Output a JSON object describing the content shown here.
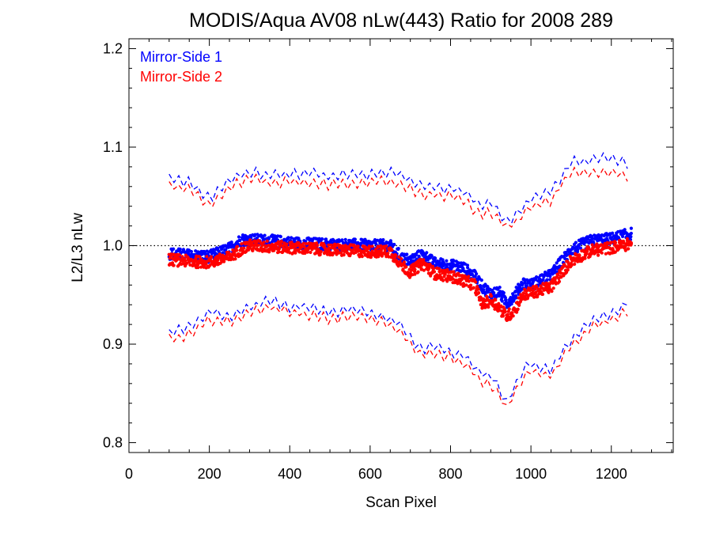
{
  "chart_data": {
    "type": "scatter",
    "title": "MODIS/Aqua AV08 nLw(443) Ratio for 2008 289",
    "xlabel": "Scan Pixel",
    "ylabel": "L2/L3 nLw",
    "xlim": [
      0,
      1354
    ],
    "ylim": [
      0.79,
      1.21
    ],
    "xticks": [
      "0",
      "200",
      "400",
      "600",
      "800",
      "1000",
      "1200"
    ],
    "yticks": [
      "0.8",
      "0.9",
      "1.0",
      "1.1",
      "1.2"
    ],
    "reference_line": 1.0,
    "legend_position": "top-left",
    "grid": false,
    "colors": {
      "ms1": "#0000ff",
      "ms2": "#ff0000",
      "reference": "#000000"
    },
    "series": [
      {
        "name": "Mirror-Side 1",
        "color": "#0000ff",
        "x": [
          100,
          150,
          200,
          250,
          280,
          300,
          350,
          400,
          450,
          500,
          550,
          600,
          650,
          680,
          700,
          730,
          760,
          800,
          830,
          860,
          880,
          900,
          920,
          940,
          960,
          980,
          1000,
          1050,
          1100,
          1150,
          1200,
          1250
        ],
        "mean": [
          0.992,
          0.99,
          0.989,
          0.997,
          1.006,
          1.006,
          1.005,
          1.003,
          1.002,
          1.001,
          1.001,
          1.0,
          1.0,
          0.987,
          0.985,
          0.991,
          0.982,
          0.98,
          0.978,
          0.969,
          0.958,
          0.951,
          0.953,
          0.942,
          0.95,
          0.962,
          0.96,
          0.97,
          0.996,
          1.005,
          1.007,
          1.012
        ],
        "upper": [
          1.068,
          1.065,
          1.048,
          1.065,
          1.072,
          1.075,
          1.072,
          1.072,
          1.074,
          1.07,
          1.072,
          1.072,
          1.075,
          1.07,
          1.065,
          1.06,
          1.06,
          1.058,
          1.055,
          1.045,
          1.04,
          1.045,
          1.032,
          1.025,
          1.03,
          1.04,
          1.048,
          1.055,
          1.085,
          1.087,
          1.09,
          1.08
        ],
        "lower": [
          0.912,
          0.918,
          0.934,
          0.928,
          0.935,
          0.938,
          0.945,
          0.938,
          0.938,
          0.932,
          0.935,
          0.932,
          0.925,
          0.92,
          0.905,
          0.895,
          0.898,
          0.893,
          0.888,
          0.877,
          0.87,
          0.868,
          0.855,
          0.84,
          0.858,
          0.873,
          0.88,
          0.875,
          0.905,
          0.925,
          0.93,
          0.945
        ]
      },
      {
        "name": "Mirror-Side 2",
        "color": "#ff0000",
        "x": [
          100,
          150,
          200,
          250,
          280,
          300,
          350,
          400,
          450,
          500,
          550,
          600,
          650,
          680,
          700,
          730,
          760,
          800,
          830,
          860,
          880,
          900,
          920,
          940,
          960,
          980,
          1000,
          1050,
          1100,
          1150,
          1200,
          1250
        ],
        "mean": [
          0.986,
          0.984,
          0.983,
          0.988,
          0.997,
          1.0,
          0.999,
          0.998,
          0.997,
          0.996,
          0.995,
          0.994,
          0.994,
          0.98,
          0.973,
          0.982,
          0.972,
          0.969,
          0.965,
          0.96,
          0.94,
          0.945,
          0.938,
          0.928,
          0.935,
          0.95,
          0.952,
          0.958,
          0.985,
          0.995,
          0.998,
          1.002
        ],
        "upper": [
          1.06,
          1.058,
          1.04,
          1.058,
          1.065,
          1.068,
          1.064,
          1.064,
          1.065,
          1.062,
          1.063,
          1.064,
          1.066,
          1.062,
          1.058,
          1.052,
          1.052,
          1.05,
          1.048,
          1.035,
          1.03,
          1.035,
          1.025,
          1.02,
          1.022,
          1.032,
          1.04,
          1.046,
          1.076,
          1.072,
          1.075,
          1.068
        ],
        "lower": [
          0.905,
          0.91,
          0.925,
          0.922,
          0.928,
          0.932,
          0.938,
          0.932,
          0.93,
          0.925,
          0.928,
          0.925,
          0.92,
          0.912,
          0.898,
          0.888,
          0.89,
          0.887,
          0.88,
          0.87,
          0.862,
          0.86,
          0.848,
          0.836,
          0.85,
          0.865,
          0.872,
          0.868,
          0.898,
          0.918,
          0.925,
          0.935
        ]
      }
    ]
  }
}
